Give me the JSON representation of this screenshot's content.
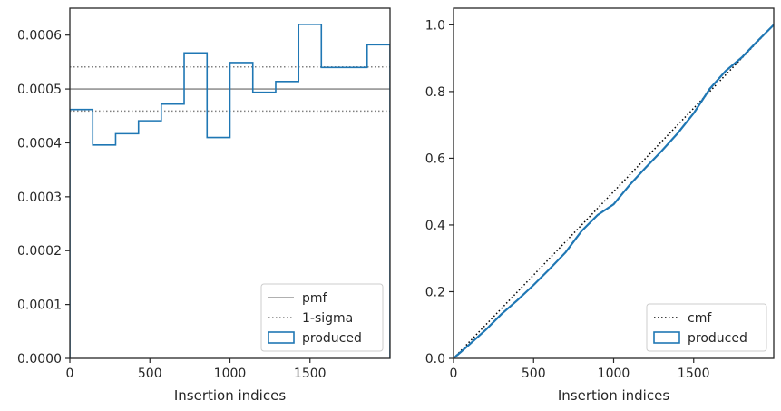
{
  "chart_data": [
    {
      "type": "histogram",
      "xlabel": "Insertion indices",
      "ylabel": "",
      "xlim": [
        0,
        2000
      ],
      "ylim": [
        0,
        0.00065
      ],
      "xticks": [
        0,
        500,
        1000,
        1500
      ],
      "xtick_labels": [
        "0",
        "500",
        "1000",
        "1500"
      ],
      "yticks": [
        0,
        0.0001,
        0.0002,
        0.0003,
        0.0004,
        0.0005,
        0.0006
      ],
      "ytick_labels": [
        "0.0000",
        "0.0001",
        "0.0002",
        "0.0003",
        "0.0004",
        "0.0005",
        "0.0006"
      ],
      "legend_position": "lower-right",
      "bin_edges": [
        0,
        143,
        286,
        429,
        571,
        714,
        857,
        1000,
        1143,
        1286,
        1429,
        1571,
        1714,
        1857,
        2000
      ],
      "series": [
        {
          "name": "pmf",
          "kind": "hline",
          "value": 0.0005,
          "color": "#808080",
          "linestyle": "solid"
        },
        {
          "name": "1-sigma",
          "kind": "hlines",
          "values": [
            0.000459,
            0.000541
          ],
          "color": "#808080",
          "linestyle": "dotted"
        },
        {
          "name": "produced",
          "kind": "step-histogram",
          "color": "#1f77b4",
          "values": [
            0.000462,
            0.000396,
            0.000417,
            0.000441,
            0.000472,
            0.000567,
            0.00041,
            0.000549,
            0.000494,
            0.000514,
            0.00062,
            0.00054,
            0.00054,
            0.000582
          ]
        }
      ]
    },
    {
      "type": "line",
      "xlabel": "Insertion indices",
      "ylabel": "",
      "xlim": [
        0,
        2000
      ],
      "ylim": [
        0,
        1.05
      ],
      "xticks": [
        0,
        500,
        1000,
        1500
      ],
      "xtick_labels": [
        "0",
        "500",
        "1000",
        "1500"
      ],
      "yticks": [
        0,
        0.2,
        0.4,
        0.6,
        0.8,
        1.0
      ],
      "ytick_labels": [
        "0.0",
        "0.2",
        "0.4",
        "0.6",
        "0.8",
        "1.0"
      ],
      "legend_position": "lower-right",
      "series": [
        {
          "name": "cmf",
          "kind": "line",
          "color": "#000000",
          "linestyle": "dotted",
          "x": [
            0,
            2000
          ],
          "y": [
            0,
            1.0
          ]
        },
        {
          "name": "produced",
          "kind": "step-cumulative",
          "color": "#1f77b4",
          "x": [
            0,
            100,
            200,
            300,
            400,
            500,
            600,
            700,
            800,
            900,
            1000,
            1100,
            1200,
            1300,
            1400,
            1500,
            1600,
            1700,
            1800,
            1900,
            2000
          ],
          "y": [
            0,
            0.042,
            0.085,
            0.133,
            0.175,
            0.22,
            0.268,
            0.318,
            0.382,
            0.43,
            0.462,
            0.52,
            0.572,
            0.622,
            0.675,
            0.735,
            0.808,
            0.862,
            0.902,
            0.952,
            1.0
          ]
        }
      ]
    }
  ]
}
